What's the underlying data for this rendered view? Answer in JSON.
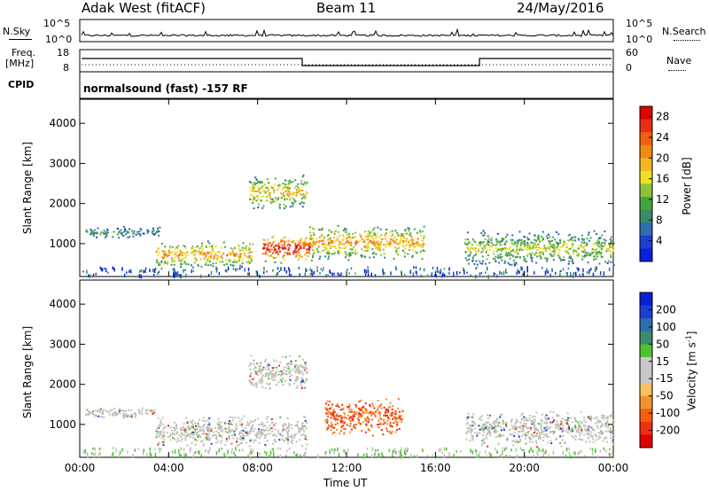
{
  "header": {
    "station": "Adak West (fitACF)",
    "beam": "Beam 11",
    "date": "24/May/2016"
  },
  "top_panels": {
    "nsky_label": "N.Sky",
    "nsky_ticks": [
      "10^5",
      "10^0"
    ],
    "nsearch_label": "N.Search",
    "nsearch_ticks": [
      "10^5",
      "10^0"
    ],
    "freq_label": "Freq.",
    "freq_unit": "[MHz]",
    "freq_ticks": [
      "18",
      "8"
    ],
    "nave_label": "Nave",
    "nave_ticks": [
      "60",
      "0"
    ],
    "cpid_label": "CPID",
    "cpid_text": "normalsound (fast) -157 RF"
  },
  "colors": {
    "power_scale": [
      "#0a1fd6",
      "#1c3fd0",
      "#2d6eb0",
      "#3b8a6a",
      "#47a43d",
      "#8cc23a",
      "#f0e020",
      "#f5b520",
      "#f08a10",
      "#f06010",
      "#e83010",
      "#e00000"
    ],
    "velocity_scale": [
      "#e00000",
      "#f03010",
      "#f56010",
      "#f59030",
      "#f8c060",
      "#c8c8c8",
      "#c8c8c8",
      "#50c030",
      "#3b8a6a",
      "#2d6eb0",
      "#1c3fd0",
      "#0a1fd6"
    ],
    "gray": "#c0c0b8"
  },
  "chart_data": [
    {
      "type": "heatmap",
      "title": "",
      "ylabel": "Slant Range [km]",
      "xlabel": "",
      "xlim": [
        "00:00",
        "24:00"
      ],
      "ylim": [
        180,
        4600
      ],
      "x_ticks": [
        "00:00",
        "04:00",
        "08:00",
        "12:00",
        "16:00",
        "20:00",
        "00:00"
      ],
      "y_ticks": [
        1000,
        2000,
        3000,
        4000
      ],
      "colorbar": {
        "label": "Power [dB]",
        "ticks": [
          4,
          8,
          12,
          16,
          20,
          24,
          28
        ],
        "range": [
          0,
          30
        ]
      },
      "regions": [
        {
          "t_start": 0.2,
          "t_end": 3.6,
          "r_center": 1300,
          "r_width": 150,
          "level_db": 6
        },
        {
          "t_start": 3.4,
          "t_end": 7.8,
          "r_center": 750,
          "r_width": 350,
          "level_db": 14
        },
        {
          "t_start": 7.6,
          "t_end": 10.2,
          "r_center": 2300,
          "r_width": 450,
          "level_db": 12
        },
        {
          "t_start": 8.2,
          "t_end": 10.4,
          "r_center": 900,
          "r_width": 400,
          "level_db": 20
        },
        {
          "t_start": 10.3,
          "t_end": 15.5,
          "r_center": 1050,
          "r_width": 450,
          "level_db": 14
        },
        {
          "t_start": 17.3,
          "t_end": 24.0,
          "r_center": 900,
          "r_width": 450,
          "level_db": 10
        }
      ]
    },
    {
      "type": "heatmap",
      "title": "",
      "ylabel": "Slant Range [km]",
      "xlabel": "Time UT",
      "xlim": [
        "00:00",
        "24:00"
      ],
      "ylim": [
        180,
        4600
      ],
      "x_ticks": [
        "00:00",
        "04:00",
        "08:00",
        "12:00",
        "16:00",
        "20:00",
        "00:00"
      ],
      "y_ticks": [
        1000,
        2000,
        3000,
        4000
      ],
      "colorbar": {
        "label": "Velocity [m s^-1]",
        "ticks": [
          200,
          100,
          50,
          15,
          -15,
          -50,
          -100,
          -200
        ]
      },
      "regions": [
        {
          "t_start": 0.2,
          "t_end": 3.6,
          "r_center": 1300,
          "r_width": 150,
          "velocity": 0
        },
        {
          "t_start": 3.4,
          "t_end": 10.2,
          "r_center": 850,
          "r_width": 400,
          "velocity": 0
        },
        {
          "t_start": 7.6,
          "t_end": 10.2,
          "r_center": 2300,
          "r_width": 450,
          "velocity": 0
        },
        {
          "t_start": 11.0,
          "t_end": 14.5,
          "r_center": 1200,
          "r_width": 500,
          "velocity": -60
        },
        {
          "t_start": 17.3,
          "t_end": 24.0,
          "r_center": 900,
          "r_width": 450,
          "velocity": 0
        }
      ]
    }
  ]
}
